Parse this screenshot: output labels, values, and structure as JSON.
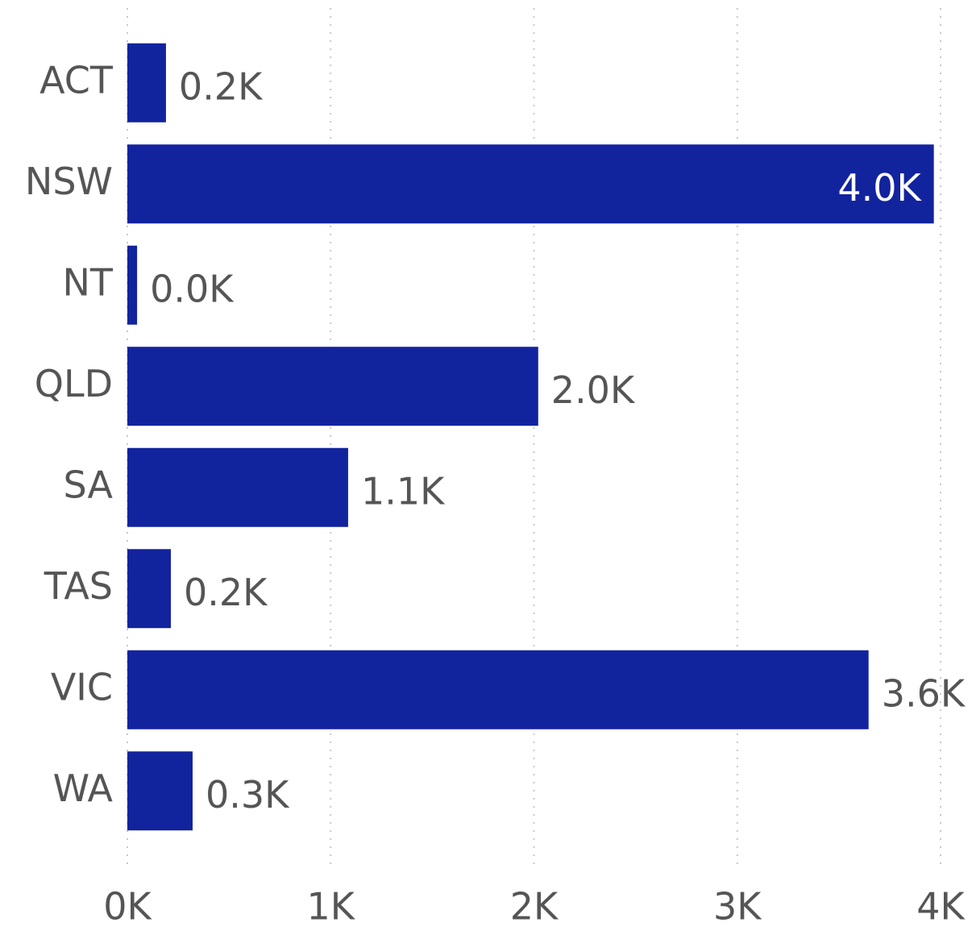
{
  "chart_data": {
    "type": "bar",
    "orientation": "horizontal",
    "categories": [
      "ACT",
      "NSW",
      "NT",
      "QLD",
      "SA",
      "TAS",
      "VIC",
      "WA"
    ],
    "values": [
      190,
      3967,
      48,
      2021,
      1086,
      214,
      3646,
      321
    ],
    "value_labels": [
      "0.2K",
      "4.0K",
      "0.0K",
      "2.0K",
      "1.1K",
      "0.2K",
      "3.6K",
      "0.3K"
    ],
    "color": "#12239e",
    "xlim": [
      0,
      4000
    ],
    "xticks": [
      {
        "value": 0,
        "label": "0K"
      },
      {
        "value": 1000,
        "label": "1K"
      },
      {
        "value": 2000,
        "label": "2K"
      },
      {
        "value": 3000,
        "label": "3K"
      },
      {
        "value": 4000,
        "label": "4K"
      }
    ],
    "grid": true
  }
}
